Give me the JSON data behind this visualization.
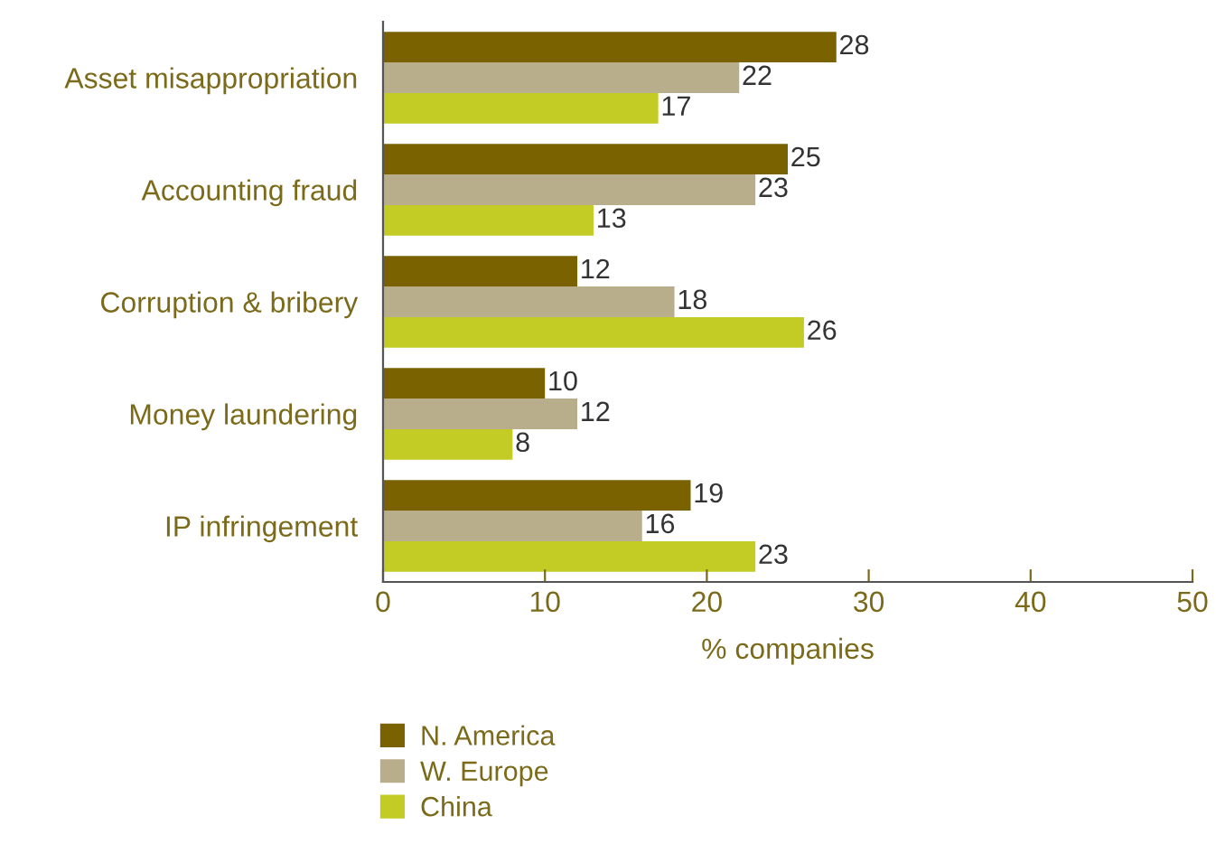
{
  "chart_data": {
    "type": "bar",
    "orientation": "horizontal",
    "xlabel": "% companies",
    "categories": [
      "Asset misappropriation",
      "Accounting fraud",
      "Corruption & bribery",
      "Money laundering",
      "IP infringement"
    ],
    "series": [
      {
        "name": "N. America",
        "color": "#7a6200",
        "values": [
          28,
          25,
          12,
          10,
          19
        ]
      },
      {
        "name": "W. Europe",
        "color": "#b9ae8c",
        "values": [
          22,
          23,
          18,
          12,
          16
        ]
      },
      {
        "name": "China",
        "color": "#c3cc24",
        "values": [
          17,
          13,
          26,
          8,
          23
        ]
      }
    ],
    "xlim": [
      0,
      50
    ],
    "xticks": [
      0,
      10,
      20,
      30,
      40,
      50
    ],
    "data_labels": true,
    "grid": false,
    "legend": "bottom left"
  }
}
